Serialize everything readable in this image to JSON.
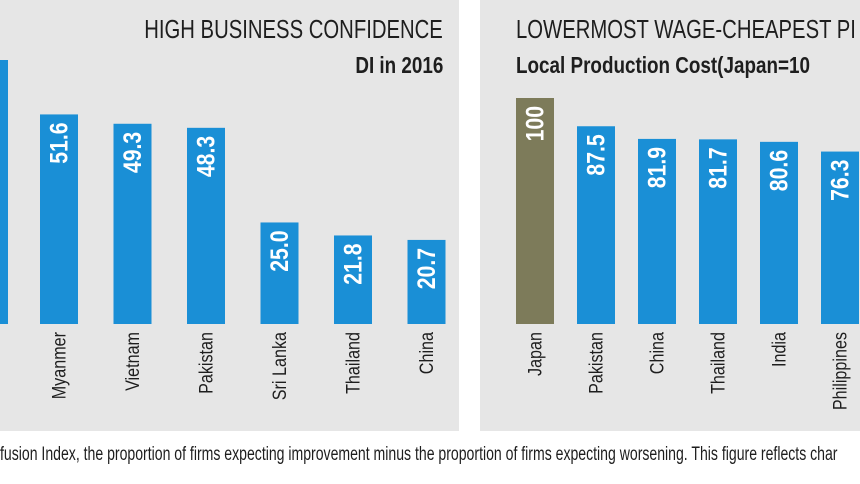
{
  "chart_data": [
    {
      "type": "bar",
      "title": "HIGH BUSINESS CONFIDENCE",
      "subtitle": "DI in 2016",
      "categories": [
        "Myanmer",
        "Vietnam",
        "Pakistan",
        "Sri Lanka",
        "Thailand",
        "China"
      ],
      "values": [
        51.6,
        49.3,
        48.3,
        25.0,
        21.8,
        20.7
      ],
      "value_labels": [
        "51.6",
        "49.3",
        "48.3",
        "25.0",
        "21.8",
        "20.7"
      ],
      "bar_color": "#1a8fd6",
      "ylim": [
        0,
        65
      ],
      "truncated_leading_bar": true
    },
    {
      "type": "bar",
      "title": "LOWERMOST WAGE-CHEAPEST PI",
      "subtitle": "Local Production Cost(Japan=10",
      "categories": [
        "Japan",
        "Pakistan",
        "China",
        "Thailand",
        "India",
        "Philippines"
      ],
      "values": [
        100,
        87.5,
        81.9,
        81.7,
        80.6,
        76.3
      ],
      "value_labels": [
        "100",
        "87.5",
        "81.9",
        "81.7",
        "80.6",
        "76.3"
      ],
      "bar_colors": [
        "#7d7b5a",
        "#1a8fd6",
        "#1a8fd6",
        "#1a8fd6",
        "#1a8fd6",
        "#1a8fd6"
      ],
      "ylim": [
        0,
        100
      ]
    }
  ],
  "footnote": "fusion Index, the proportion of firms expecting improvement minus the proportion of firms expecting worsening. This figure reflects char"
}
